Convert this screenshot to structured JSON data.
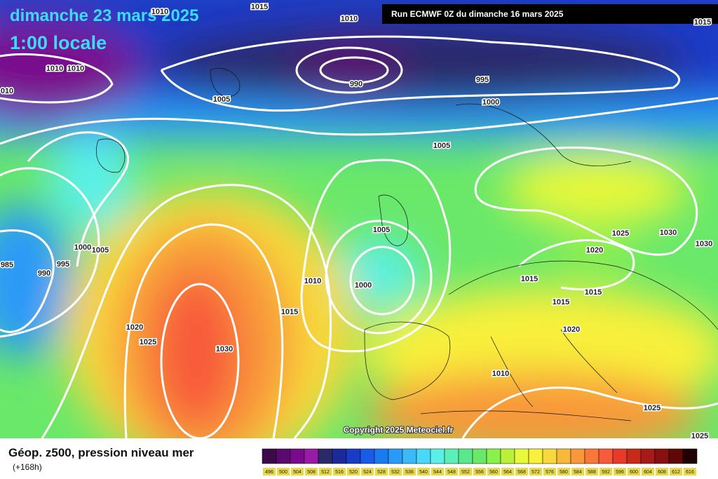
{
  "header": {
    "date": "dimanche 23 mars 2025",
    "time": "1:00 locale",
    "run": "Run ECMWF 0Z du dimanche 16 mars 2025"
  },
  "copyright": "Copyright 2025 Meteociel.fr",
  "footer": {
    "title": "Géop. z500, pression niveau mer",
    "lead": "(+168h)"
  },
  "isobar_labels": [
    "1010",
    "1015",
    "1010",
    "1015",
    "1010",
    "1010",
    "010",
    "990",
    "995",
    "1000",
    "1005",
    "1005",
    "1005",
    "1000",
    "1005",
    "985",
    "990",
    "995",
    "1010",
    "1000",
    "1015",
    "1020",
    "1025",
    "1030",
    "1025",
    "1030",
    "1030",
    "1020",
    "1015",
    "1015",
    "1015",
    "1020",
    "1010",
    "1025",
    "1025"
  ],
  "legend": {
    "scale": [
      496,
      500,
      504,
      508,
      512,
      516,
      520,
      524,
      528,
      532,
      536,
      540,
      544,
      548,
      552,
      556,
      560,
      564,
      568,
      572,
      576,
      580,
      584,
      588,
      592,
      596,
      600,
      604,
      608,
      612,
      616
    ],
    "colors": [
      "#3c0a4a",
      "#5a0a6e",
      "#7a0a8c",
      "#9a1aa8",
      "#2a2a6a",
      "#1a2a9a",
      "#1a3ac8",
      "#1a5ae8",
      "#1a7af0",
      "#2a9af8",
      "#3abaf8",
      "#4ad8f8",
      "#5af0e8",
      "#5af0b8",
      "#5ae88a",
      "#6ae86a",
      "#8af04a",
      "#b8f03a",
      "#e8f83a",
      "#f8f03a",
      "#f8d83a",
      "#f8b83a",
      "#f8983a",
      "#f8783a",
      "#f85a3a",
      "#e83a2a",
      "#c82a1a",
      "#a81a1a",
      "#881010",
      "#600808",
      "#200000"
    ]
  }
}
